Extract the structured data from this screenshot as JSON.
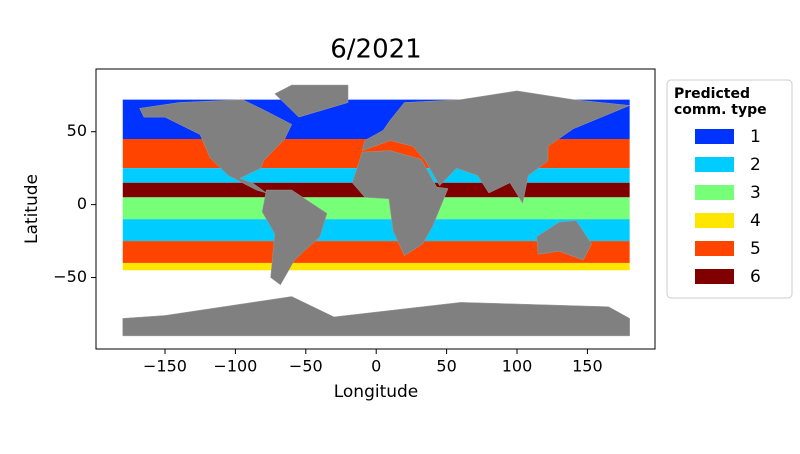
{
  "chart_data": {
    "type": "map",
    "title": "6/2021",
    "x_label": "Longitude",
    "y_label": "Latitude",
    "xlim": [
      -199,
      198
    ],
    "ylim": [
      -99,
      93
    ],
    "xticks": [
      {
        "value": -150,
        "label": "−150"
      },
      {
        "value": -100,
        "label": "−100"
      },
      {
        "value": -50,
        "label": "−50"
      },
      0,
      50,
      100,
      150
    ],
    "yticks": [
      {
        "value": -50,
        "label": "−50"
      },
      0,
      50
    ],
    "legend": {
      "title": "Predicted\ncomm. type",
      "position": "outside right",
      "series": [
        {
          "name": "1",
          "color": "#0033ff"
        },
        {
          "name": "2",
          "color": "#00ccff"
        },
        {
          "name": "3",
          "color": "#77ff77"
        },
        {
          "name": "4",
          "color": "#ffe600"
        },
        {
          "name": "5",
          "color": "#ff4400"
        },
        {
          "name": "6",
          "color": "#800000"
        }
      ]
    }
  }
}
